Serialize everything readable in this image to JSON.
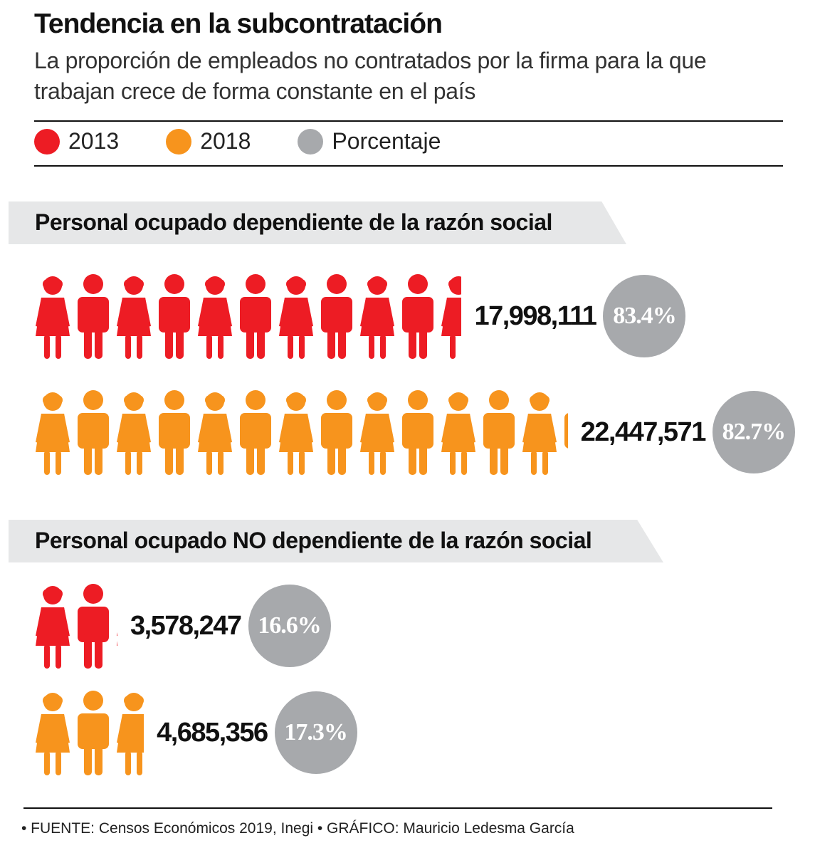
{
  "title": "Tendencia en la subcontratación",
  "subtitle": "La proporción de empleados no contratados por la firma para la que trabajan crece de forma constante en el país",
  "legend": [
    {
      "label": "2013",
      "color": "#ed1c24"
    },
    {
      "label": "2018",
      "color": "#f7941d"
    },
    {
      "label": "Porcentaje",
      "color": "#a7a9ac"
    }
  ],
  "chart_data": {
    "type": "pictogram",
    "title": "Tendencia en la subcontratación",
    "unit_per_icon": 1700000,
    "groups": [
      {
        "label": "Personal ocupado dependiente de la razón social",
        "series": [
          {
            "name": "2013",
            "value": 17998111,
            "value_label": "17,998,111",
            "percent": 83.4,
            "percent_label": "83.4%",
            "color": "#ed1c24"
          },
          {
            "name": "2018",
            "value": 22447571,
            "value_label": "22,447,571",
            "percent": 82.7,
            "percent_label": "82.7%",
            "color": "#f7941d"
          }
        ]
      },
      {
        "label": "Personal ocupado NO dependiente de la razón social",
        "series": [
          {
            "name": "2013",
            "value": 3578247,
            "value_label": "3,578,247",
            "percent": 16.6,
            "percent_label": "16.6%",
            "color": "#ed1c24"
          },
          {
            "name": "2018",
            "value": 4685356,
            "value_label": "4,685,356",
            "percent": 17.3,
            "percent_label": "17.3%",
            "color": "#f7941d"
          }
        ]
      }
    ]
  },
  "footer": "• FUENTE: Censos Económicos 2019, Inegi • GRÁFICO: Mauricio Ledesma García"
}
